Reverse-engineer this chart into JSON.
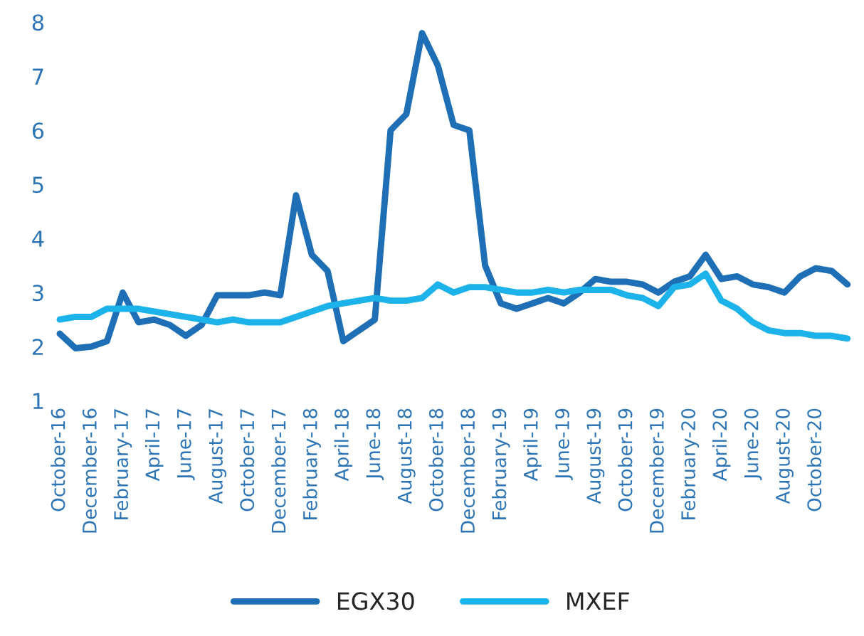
{
  "chart_data": {
    "type": "line",
    "categories": [
      "October-16",
      null,
      "December-16",
      null,
      "February-17",
      null,
      "April-17",
      null,
      "June-17",
      null,
      "August-17",
      null,
      "October-17",
      null,
      "December-17",
      null,
      "February-18",
      null,
      "April-18",
      null,
      "June-18",
      null,
      "August-18",
      null,
      "October-18",
      null,
      "December-18",
      null,
      "February-19",
      null,
      "April-19",
      null,
      "June-19",
      null,
      "August-19",
      null,
      "October-19",
      null,
      "December-19",
      null,
      "February-20",
      null,
      "April-20",
      null,
      "June-20",
      null,
      "August-20",
      null,
      "October-20",
      null,
      null
    ],
    "series": [
      {
        "name": "EGX30",
        "color": "#1f6fb6",
        "values": [
          2.24,
          1.97,
          2.0,
          2.1,
          3.0,
          2.45,
          2.5,
          2.4,
          2.2,
          2.4,
          2.95,
          2.95,
          2.95,
          3.0,
          2.95,
          4.8,
          3.7,
          3.4,
          2.1,
          2.3,
          2.5,
          6.0,
          6.3,
          7.8,
          7.2,
          6.1,
          6.0,
          3.5,
          2.8,
          2.7,
          2.8,
          2.9,
          2.8,
          3.0,
          3.25,
          3.2,
          3.2,
          3.15,
          3.0,
          3.2,
          3.3,
          3.7,
          3.25,
          3.3,
          3.15,
          3.1,
          3.0,
          3.3,
          3.45,
          3.4,
          3.15
        ]
      },
      {
        "name": "MXEF",
        "color": "#1cb2ea",
        "values": [
          2.5,
          2.55,
          2.55,
          2.7,
          2.7,
          2.7,
          2.65,
          2.6,
          2.55,
          2.5,
          2.45,
          2.5,
          2.45,
          2.45,
          2.45,
          2.55,
          2.65,
          2.75,
          2.8,
          2.85,
          2.9,
          2.85,
          2.85,
          2.9,
          3.15,
          3.0,
          3.1,
          3.1,
          3.05,
          3.0,
          3.0,
          3.05,
          3.0,
          3.05,
          3.05,
          3.05,
          2.95,
          2.9,
          2.75,
          3.1,
          3.15,
          3.35,
          2.85,
          2.7,
          2.45,
          2.3,
          2.25,
          2.25,
          2.2,
          2.2,
          2.15
        ]
      }
    ],
    "ylim": [
      1,
      8
    ],
    "yticks": [
      1,
      2,
      3,
      4,
      5,
      6,
      7,
      8
    ],
    "grid": false,
    "legend": "bottom",
    "line_style": "solid"
  }
}
